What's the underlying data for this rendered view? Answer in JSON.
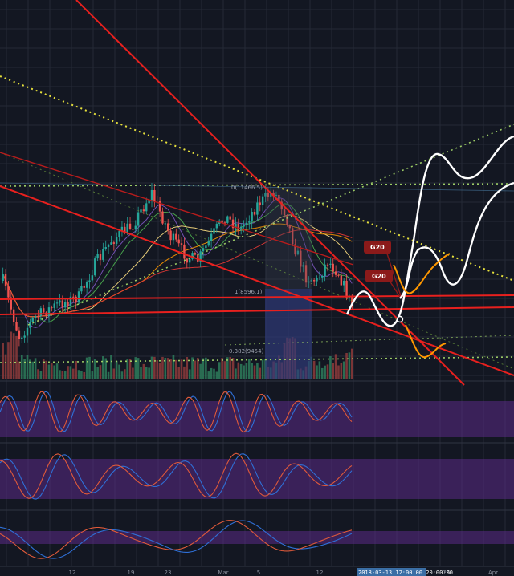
{
  "chart_data": {
    "type": "candlestick",
    "theme": {
      "background": "#131722",
      "grid": "#252a36",
      "up": "#26a69a",
      "down": "#ef5350"
    },
    "x_ticks": [
      "12",
      "19",
      "23",
      "Mar",
      "5",
      "12",
      "19",
      "26",
      "Apr"
    ],
    "price_label": "1(8596.1)",
    "fib_label": "0(11466.5)",
    "volume_label": "0.382(9454)",
    "date_label": "2018-03-13 12:00:00  20:00:00",
    "tags": [
      {
        "text": "G20"
      },
      {
        "text": "G20"
      }
    ],
    "overlays": {
      "resistance_color": "#e8201e",
      "support_color": "#e8201e",
      "fib_color": "#9ccc65",
      "trend_color": "#e6e03c",
      "projection_color": "#ffffff",
      "alt_projection_color": "#ff9800",
      "ma_colors": [
        "#e53935",
        "#ff9800",
        "#ffe082",
        "#4caf50",
        "#7e57c2"
      ]
    },
    "oscillators": [
      {
        "name": "stoch_rsi_1",
        "band_color": "#5b2a86"
      },
      {
        "name": "stoch_rsi_2",
        "band_color": "#5b2a86"
      },
      {
        "name": "stoch_rsi_3",
        "band_color": "#5b2a86"
      }
    ]
  }
}
